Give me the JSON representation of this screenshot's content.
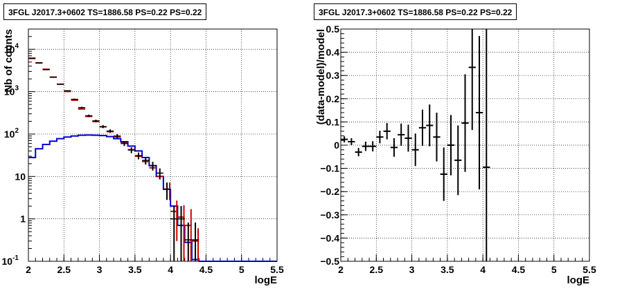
{
  "chart_data": [
    {
      "type": "line",
      "title": "3FGL J2017.3+0602 TS=1886.58 PS=0.22 PS=0.22",
      "xlabel": "logE",
      "ylabel": "Nb of counts",
      "xlim": [
        2,
        5.5
      ],
      "ylim": [
        0.1,
        30000
      ],
      "yscale": "log",
      "grid": true,
      "x_ticks": [
        "2",
        "2.5",
        "3",
        "3.5",
        "4",
        "4.5",
        "5",
        "5.5"
      ],
      "y_ticks": [
        {
          "value": 0.1,
          "base": "10",
          "exp": "-1"
        },
        {
          "value": 1,
          "base": "1",
          "exp": ""
        },
        {
          "value": 10,
          "base": "10",
          "exp": ""
        },
        {
          "value": 100,
          "base": "10",
          "exp": "2"
        },
        {
          "value": 1000,
          "base": "10",
          "exp": "3"
        },
        {
          "value": 10000,
          "base": "10",
          "exp": "4"
        }
      ],
      "bin_width": 0.1,
      "series": [
        {
          "kind": "data",
          "color": "#000000",
          "x": [
            2.05,
            2.15,
            2.25,
            2.35,
            2.45,
            2.55,
            2.65,
            2.75,
            2.85,
            2.95,
            3.05,
            3.15,
            3.25,
            3.35,
            3.45,
            3.55,
            3.65,
            3.75,
            3.85,
            3.95,
            4.05,
            4.15,
            4.25,
            4.35
          ],
          "y": [
            6200,
            4800,
            3300,
            2200,
            1500,
            1050,
            660,
            420,
            270,
            205,
            150,
            118,
            90,
            60,
            42,
            31,
            24,
            18,
            12,
            5,
            1,
            1,
            0.32,
            0.32
          ],
          "yerr": [
            80,
            70,
            60,
            48,
            40,
            33,
            26,
            21,
            17,
            14,
            12,
            11,
            9.5,
            7.7,
            6.5,
            5.6,
            4.9,
            4.2,
            3.5,
            2.2,
            1,
            1,
            0.5,
            0.5
          ]
        },
        {
          "kind": "model-total",
          "color": "#cc0000",
          "x": [
            2.05,
            2.15,
            2.25,
            2.35,
            2.45,
            2.55,
            2.65,
            2.75,
            2.85,
            2.95,
            3.05,
            3.15,
            3.25,
            3.35,
            3.45,
            3.55,
            3.65,
            3.75,
            3.85,
            3.95,
            4.05,
            4.15,
            4.25,
            4.35
          ],
          "y": [
            6050,
            4750,
            3380,
            2200,
            1500,
            1010,
            630,
            390,
            260,
            197,
            148,
            114,
            86,
            61,
            43,
            30,
            22.5,
            16,
            10,
            5,
            1.5,
            1.1,
            0.7,
            0.3
          ],
          "yerr": [
            0,
            0,
            0,
            0,
            0,
            0,
            0,
            0,
            0,
            0,
            0,
            0,
            0,
            0,
            0,
            0,
            0,
            0,
            0,
            2.2,
            1.2,
            1.0,
            1.0,
            0.3
          ]
        },
        {
          "kind": "model-source",
          "color": "#0000cc",
          "edges": [
            2.0,
            2.1,
            2.2,
            2.3,
            2.4,
            2.5,
            2.6,
            2.7,
            2.8,
            2.9,
            3.0,
            3.1,
            3.2,
            3.3,
            3.4,
            3.5,
            3.6,
            3.7,
            3.8,
            3.9,
            4.0,
            4.1,
            4.2,
            4.3,
            4.4,
            5.5
          ],
          "y": [
            28,
            45,
            57,
            68,
            78,
            85,
            90,
            94,
            95,
            94,
            92,
            87,
            78,
            66,
            52,
            40,
            28,
            18,
            10,
            5,
            2,
            0.7,
            0.28,
            0.11,
            0.1
          ]
        }
      ]
    },
    {
      "type": "scatter",
      "title": "3FGL J2017.3+0602 TS=1886.58 PS=0.22 PS=0.22",
      "xlabel": "logE",
      "ylabel": "(data-model)/model",
      "xlim": [
        2,
        5.5
      ],
      "ylim": [
        -0.5,
        0.5
      ],
      "grid": true,
      "x_ticks": [
        "2",
        "2.5",
        "3",
        "3.5",
        "4",
        "4.5",
        "5",
        "5.5"
      ],
      "y_ticks": [
        "−0.5",
        "−0.4",
        "−0.3",
        "−0.2",
        "−0.1",
        "0",
        "0.1",
        "0.2",
        "0.3",
        "0.4",
        "0.5"
      ],
      "bin_width": 0.1,
      "series": [
        {
          "kind": "residual",
          "color": "#000000",
          "x": [
            2.05,
            2.15,
            2.25,
            2.35,
            2.45,
            2.55,
            2.65,
            2.75,
            2.85,
            2.95,
            3.05,
            3.15,
            3.25,
            3.35,
            3.45,
            3.55,
            3.65,
            3.75,
            3.85,
            3.95,
            4.05
          ],
          "y": [
            0.025,
            0.015,
            -0.03,
            -0.005,
            -0.005,
            0.035,
            0.06,
            -0.01,
            0.045,
            0.03,
            -0.02,
            0.075,
            0.085,
            0.035,
            -0.125,
            0.0,
            -0.065,
            0.095,
            0.335,
            0.14,
            -0.095
          ],
          "yerr": [
            0.013,
            0.015,
            0.018,
            0.02,
            0.022,
            0.027,
            0.035,
            0.04,
            0.048,
            0.058,
            0.07,
            0.078,
            0.09,
            0.105,
            0.115,
            0.13,
            0.15,
            0.21,
            0.27,
            0.33,
            0.6
          ]
        }
      ]
    }
  ]
}
